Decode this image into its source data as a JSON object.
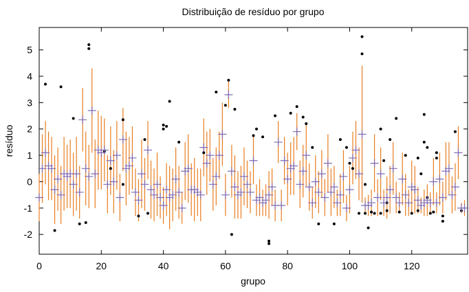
{
  "chart_data": {
    "type": "errorbar",
    "title": "Distribuição de resíduo por grupo",
    "xlabel": "grupo",
    "ylabel": "resíduo",
    "x": [
      0,
      1,
      2,
      3,
      4,
      5,
      6,
      7,
      8,
      9,
      10,
      11,
      12,
      13,
      14,
      15,
      16,
      17,
      18,
      19,
      20,
      21,
      22,
      23,
      24,
      25,
      26,
      27,
      28,
      29,
      30,
      31,
      32,
      33,
      34,
      35,
      36,
      37,
      38,
      39,
      40,
      41,
      42,
      43,
      44,
      45,
      46,
      47,
      48,
      49,
      50,
      51,
      52,
      53,
      54,
      55,
      56,
      57,
      58,
      59,
      60,
      61,
      62,
      63,
      64,
      65,
      66,
      67,
      68,
      69,
      70,
      71,
      72,
      73,
      74,
      75,
      76,
      77,
      78,
      79,
      80,
      81,
      82,
      83,
      84,
      85,
      86,
      87,
      88,
      89,
      90,
      91,
      92,
      93,
      94,
      95,
      96,
      97,
      98,
      99,
      100,
      101,
      102,
      103,
      104,
      105,
      106,
      107,
      108,
      109,
      110,
      111,
      112,
      113,
      114,
      115,
      116,
      117,
      118,
      119,
      120,
      121,
      122,
      123,
      124,
      125,
      126,
      127,
      128,
      129,
      130,
      131,
      132,
      133,
      134,
      135,
      136,
      137
    ],
    "means": [
      -0.6,
      0.5,
      1.1,
      0.6,
      0.5,
      -0.3,
      0.1,
      -0.5,
      0.3,
      0.2,
      0.3,
      -0.1,
      0.3,
      -0.4,
      2.35,
      0.5,
      0.2,
      2.7,
      0.3,
      1.2,
      1.1,
      1.2,
      -0.1,
      0.8,
      0.0,
      1.0,
      -0.6,
      1.6,
      0.5,
      0.6,
      0.9,
      -0.4,
      -0.7,
      0.3,
      -0.1,
      1.2,
      -0.3,
      -0.5,
      -0.1,
      -0.6,
      -0.9,
      -0.3,
      -0.6,
      -0.5,
      0.1,
      -0.4,
      -1.0,
      0.4,
      0.5,
      -0.3,
      -0.3,
      -0.4,
      -0.5,
      1.3,
      0.7,
      1.0,
      -0.1,
      0.2,
      1.0,
      1.8,
      -0.5,
      3.3,
      0.4,
      -0.2,
      -0.5,
      -0.4,
      0.2,
      -0.1,
      -0.4,
      0.8,
      -0.7,
      -0.6,
      -0.8,
      -0.7,
      -0.5,
      -0.2,
      -0.9,
      1.5,
      -0.9,
      0.8,
      0.1,
      0.5,
      0.6,
      1.9,
      -0.1,
      0.4,
      1.0,
      -0.2,
      -0.8,
      0.0,
      -0.4,
      0.3,
      -0.6,
      0.7,
      -0.4,
      -0.2,
      -0.8,
      -0.5,
      0.2,
      -1.0,
      -0.3,
      0.9,
      1.2,
      0.3,
      1.8,
      -0.9,
      -0.9,
      -0.8,
      0.7,
      -0.6,
      0.3,
      -0.8,
      -0.6,
      -0.3,
      0.5,
      -0.6,
      -0.8,
      0.1,
      -0.5,
      -0.8,
      -0.2,
      -0.3,
      -0.7,
      -0.9,
      -0.8,
      -0.7,
      -0.8,
      0.0,
      -0.8,
      0.1,
      -0.6,
      0.4,
      0.5,
      -0.5,
      -0.2,
      1.1,
      -1.0,
      -1.0
    ],
    "errors": [
      0.9,
      1.3,
      1.2,
      1.3,
      1.2,
      1.3,
      1.2,
      1.1,
      1.4,
      1.2,
      1.3,
      1.2,
      1.4,
      1.0,
      1.2,
      1.4,
      1.2,
      1.6,
      1.3,
      1.5,
      1.4,
      1.2,
      1.1,
      1.3,
      1.2,
      1.3,
      0.9,
      1.2,
      1.4,
      1.1,
      1.2,
      0.9,
      0.8,
      1.3,
      1.0,
      1.1,
      1.1,
      1.0,
      1.2,
      0.8,
      0.7,
      1.0,
      1.2,
      1.0,
      1.2,
      1.0,
      0.6,
      1.1,
      1.3,
      1.0,
      1.2,
      0.9,
      1.0,
      1.1,
      1.2,
      1.0,
      1.0,
      1.1,
      0.9,
      1.2,
      0.8,
      0.5,
      1.0,
      1.2,
      0.9,
      1.0,
      1.1,
      0.9,
      0.8,
      0.9,
      0.6,
      0.7,
      0.5,
      0.6,
      0.9,
      0.7,
      0.6,
      0.8,
      0.6,
      0.9,
      1.0,
      1.0,
      1.1,
      0.7,
      0.9,
      1.0,
      1.2,
      0.9,
      0.6,
      1.0,
      0.8,
      0.9,
      0.7,
      1.1,
      0.9,
      0.8,
      0.5,
      0.8,
      1.0,
      0.5,
      0.9,
      1.0,
      1.1,
      1.0,
      2.6,
      0.3,
      0.4,
      0.5,
      1.1,
      0.7,
      1.0,
      0.5,
      0.8,
      0.9,
      1.0,
      0.6,
      0.4,
      1.0,
      0.8,
      0.5,
      1.0,
      0.9,
      0.5,
      0.3,
      0.5,
      0.6,
      0.4,
      0.9,
      0.4,
      1.0,
      0.6,
      1.1,
      1.0,
      0.7,
      0.9,
      1.0,
      0.2,
      0.3
    ],
    "bar_color": "#e87d1e",
    "mean_color": "#7e6bb5",
    "outliers": {
      "color": "#000000",
      "x": [
        2,
        7,
        5,
        16,
        16,
        13,
        15,
        42,
        40,
        41,
        40,
        53,
        57,
        61,
        60,
        63,
        62,
        74,
        74,
        76,
        70,
        72,
        69,
        83,
        81,
        85,
        86,
        88,
        90,
        95,
        104,
        104,
        106,
        103,
        105,
        107,
        108,
        110,
        112,
        110,
        113,
        115,
        116,
        120,
        122,
        124,
        124,
        125,
        126,
        127,
        128,
        128,
        130,
        130,
        134,
        136,
        100,
        101,
        111,
        118,
        105,
        123,
        23,
        27,
        21,
        11,
        34,
        32,
        45,
        27,
        35,
        97,
        99,
        112,
        125,
        122
      ],
      "y": [
        3.7,
        3.6,
        -1.85,
        5.2,
        5.05,
        -1.6,
        -1.55,
        3.05,
        2.15,
        2.1,
        2.0,
        1.1,
        3.4,
        3.85,
        2.9,
        2.75,
        -2.0,
        -2.25,
        -2.35,
        2.5,
        2.0,
        1.7,
        1.75,
        2.85,
        2.6,
        2.45,
        2.2,
        1.3,
        -1.6,
        -1.6,
        5.5,
        4.85,
        -1.75,
        -1.2,
        -1.2,
        -1.15,
        -1.2,
        -1.2,
        -1.1,
        2.0,
        1.6,
        2.4,
        -1.15,
        -1.2,
        -1.1,
        2.55,
        1.5,
        1.3,
        -1.2,
        -1.15,
        1.1,
        0.9,
        -1.3,
        -1.5,
        1.9,
        -1.1,
        0.7,
        0.5,
        0.8,
        1.0,
        -0.1,
        0.3,
        0.5,
        -0.1,
        1.15,
        2.4,
        1.6,
        -1.3,
        1.5,
        2.35,
        -1.2,
        1.6,
        1.3,
        -0.8,
        -0.6,
        0.9
      ]
    },
    "xlim": [
      0,
      138
    ],
    "ylim": [
      -2.75,
      5.85
    ],
    "xticks": [
      0,
      20,
      40,
      60,
      80,
      100,
      120
    ],
    "yticks": [
      -2,
      -1,
      0,
      1,
      2,
      3,
      4,
      5
    ]
  }
}
